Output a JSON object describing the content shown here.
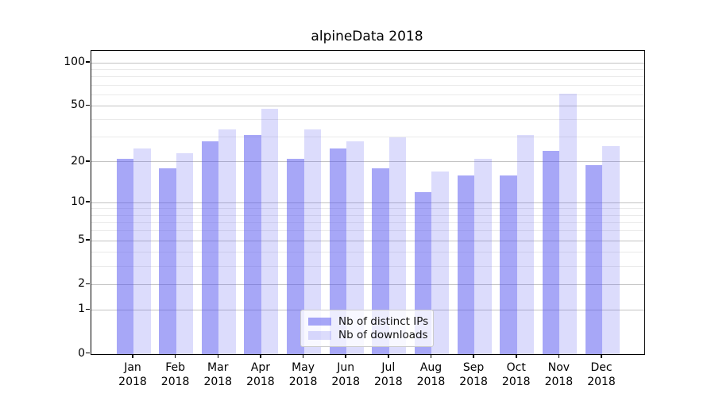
{
  "title": "alpineData 2018",
  "chart_data": {
    "type": "bar",
    "title": "alpineData 2018",
    "categories": [
      "Jan",
      "Feb",
      "Mar",
      "Apr",
      "May",
      "Jun",
      "Jul",
      "Aug",
      "Sep",
      "Oct",
      "Nov",
      "Dec"
    ],
    "x_sublabel": "2018",
    "series": [
      {
        "name": "Nb of distinct IPs",
        "values": [
          21,
          18,
          28,
          31,
          21,
          25,
          18,
          12,
          16,
          16,
          24,
          19
        ],
        "color": "rgba(80,80,240,0.5)"
      },
      {
        "name": "Nb of downloads",
        "values": [
          25,
          23,
          34,
          48,
          34,
          28,
          30,
          17,
          21,
          31,
          61,
          26
        ],
        "color": "rgba(80,80,240,0.2)"
      }
    ],
    "xlabel": "",
    "ylabel": "",
    "yscale": "symlog-log1p",
    "ylim": [
      0,
      121
    ],
    "y_ticks": [
      0,
      1,
      2,
      5,
      10,
      20,
      50,
      100
    ],
    "y_minor_ticks": [
      3,
      4,
      6,
      7,
      8,
      9,
      30,
      40,
      60,
      70,
      80,
      90
    ],
    "grid": true,
    "legend_position": "lower-center",
    "colors": {
      "grid_major": "#c3c3c3",
      "grid_minor": "#eaeaea",
      "axis": "#000000",
      "background": "#ffffff"
    }
  }
}
